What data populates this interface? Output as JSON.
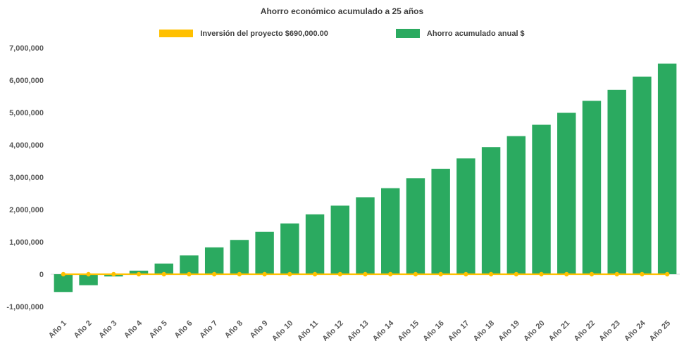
{
  "title": "Ahorro económico acumulado a 25 años",
  "legend": [
    {
      "label": "Inversión del proyecto $690,000.00",
      "color": "#FFC000"
    },
    {
      "label": "Ahorro acumulado anual $",
      "color": "#2BAA60"
    }
  ],
  "chart_data": {
    "type": "bar",
    "title": "Ahorro económico acumulado a 25 años",
    "xlabel": "",
    "ylabel": "",
    "grid": false,
    "legend_position": "top",
    "ylim": [
      -1000000,
      7000000
    ],
    "ytick_step": 1000000,
    "ytick_labels": [
      "-1,000,000",
      "0",
      "1,000,000",
      "2,000,000",
      "3,000,000",
      "4,000,000",
      "5,000,000",
      "6,000,000",
      "7,000,000"
    ],
    "categories": [
      "Año 1",
      "Año 2",
      "Año 3",
      "Año 4",
      "Año 5",
      "Año 6",
      "Año 7",
      "Año 8",
      "Año 9",
      "Año 10",
      "Año 11",
      "Año 12",
      "Año 13",
      "Año 14",
      "Año 15",
      "Año 16",
      "Año 17",
      "Año 18",
      "Año 19",
      "Año 20",
      "Año 21",
      "Año 22",
      "Año 23",
      "Año 24",
      "Año 25"
    ],
    "series": [
      {
        "name": "Inversión del proyecto $690,000.00",
        "type": "line",
        "marker": "circle",
        "color": "#FFC000",
        "values": [
          0,
          0,
          0,
          0,
          0,
          0,
          0,
          0,
          0,
          0,
          0,
          0,
          0,
          0,
          0,
          0,
          0,
          0,
          0,
          0,
          0,
          0,
          0,
          0,
          0
        ]
      },
      {
        "name": "Ahorro acumulado anual $",
        "type": "bar",
        "color": "#2BAA60",
        "values": [
          -550000,
          -340000,
          -70000,
          110000,
          330000,
          580000,
          830000,
          1060000,
          1310000,
          1570000,
          1850000,
          2120000,
          2380000,
          2660000,
          2970000,
          3260000,
          3580000,
          3930000,
          4270000,
          4620000,
          4990000,
          5360000,
          5700000,
          6110000,
          6510000
        ]
      }
    ]
  }
}
